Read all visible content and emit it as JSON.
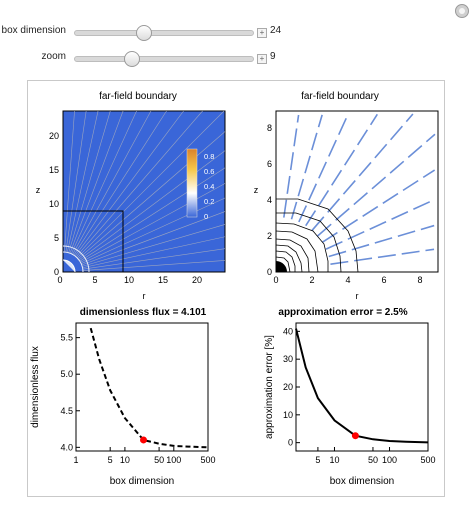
{
  "controls": {
    "box_dimension": {
      "label": "box dimension",
      "value": "24",
      "fraction": 0.39
    },
    "zoom": {
      "label": "zoom",
      "value": "9",
      "fraction": 0.32
    }
  },
  "plots": {
    "top_left": {
      "title": "far-field boundary",
      "xlabel": "r",
      "ylabel": "z",
      "xticks": [
        "0",
        "5",
        "10",
        "15",
        "20"
      ],
      "yticks": [
        "0",
        "5",
        "10",
        "15",
        "20"
      ],
      "legend_ticks": [
        "0.8",
        "0.6",
        "0.4",
        "0.2",
        "0"
      ],
      "background_color": "#3a66d8"
    },
    "top_right": {
      "title": "far-field boundary",
      "xlabel": "r",
      "ylabel": "z",
      "xticks": [
        "0",
        "2",
        "4",
        "6",
        "8"
      ],
      "yticks": [
        "0",
        "2",
        "4",
        "6",
        "8"
      ],
      "line_color": "#6b8fd8"
    },
    "bottom_left": {
      "title": "dimensionless flux = 4.101",
      "xlabel": "box dimension",
      "ylabel": "dimensionless flux",
      "xticks": [
        "1",
        "5",
        "10",
        "50",
        "100",
        "500"
      ],
      "yticks": [
        "4.0",
        "4.5",
        "5.0",
        "5.5"
      ]
    },
    "bottom_right": {
      "title": "approximation error = 2.5%",
      "xlabel": "box dimension",
      "ylabel": "approximation error [%]",
      "xticks": [
        "5",
        "10",
        "50",
        "100",
        "500"
      ],
      "yticks": [
        "0",
        "10",
        "20",
        "30",
        "40"
      ]
    }
  },
  "chart_data": [
    {
      "type": "line",
      "title": "dimensionless flux = 4.101",
      "xlabel": "box dimension",
      "ylabel": "dimensionless flux",
      "x_scale": "log",
      "xlim": [
        1,
        500
      ],
      "ylim": [
        3.95,
        5.7
      ],
      "series": [
        {
          "style": "dashed",
          "x": [
            2,
            3,
            5,
            10,
            24,
            50,
            100,
            200,
            500
          ],
          "y": [
            5.63,
            5.2,
            4.78,
            4.4,
            4.1,
            4.05,
            4.02,
            4.01,
            4.0
          ]
        }
      ],
      "marker": {
        "x": 24,
        "y": 4.101,
        "color": "#ff0000"
      }
    },
    {
      "type": "line",
      "title": "approximation error = 2.5%",
      "xlabel": "box dimension",
      "ylabel": "approximation error [%]",
      "x_scale": "log",
      "xlim": [
        2,
        500
      ],
      "ylim": [
        -3,
        43
      ],
      "series": [
        {
          "style": "solid",
          "x": [
            2,
            3,
            5,
            10,
            24,
            50,
            100,
            200,
            500
          ],
          "y": [
            41,
            27,
            16,
            8,
            2.5,
            1.2,
            0.6,
            0.3,
            0.1
          ]
        }
      ],
      "marker": {
        "x": 24,
        "y": 2.5,
        "color": "#ff0000"
      }
    }
  ]
}
